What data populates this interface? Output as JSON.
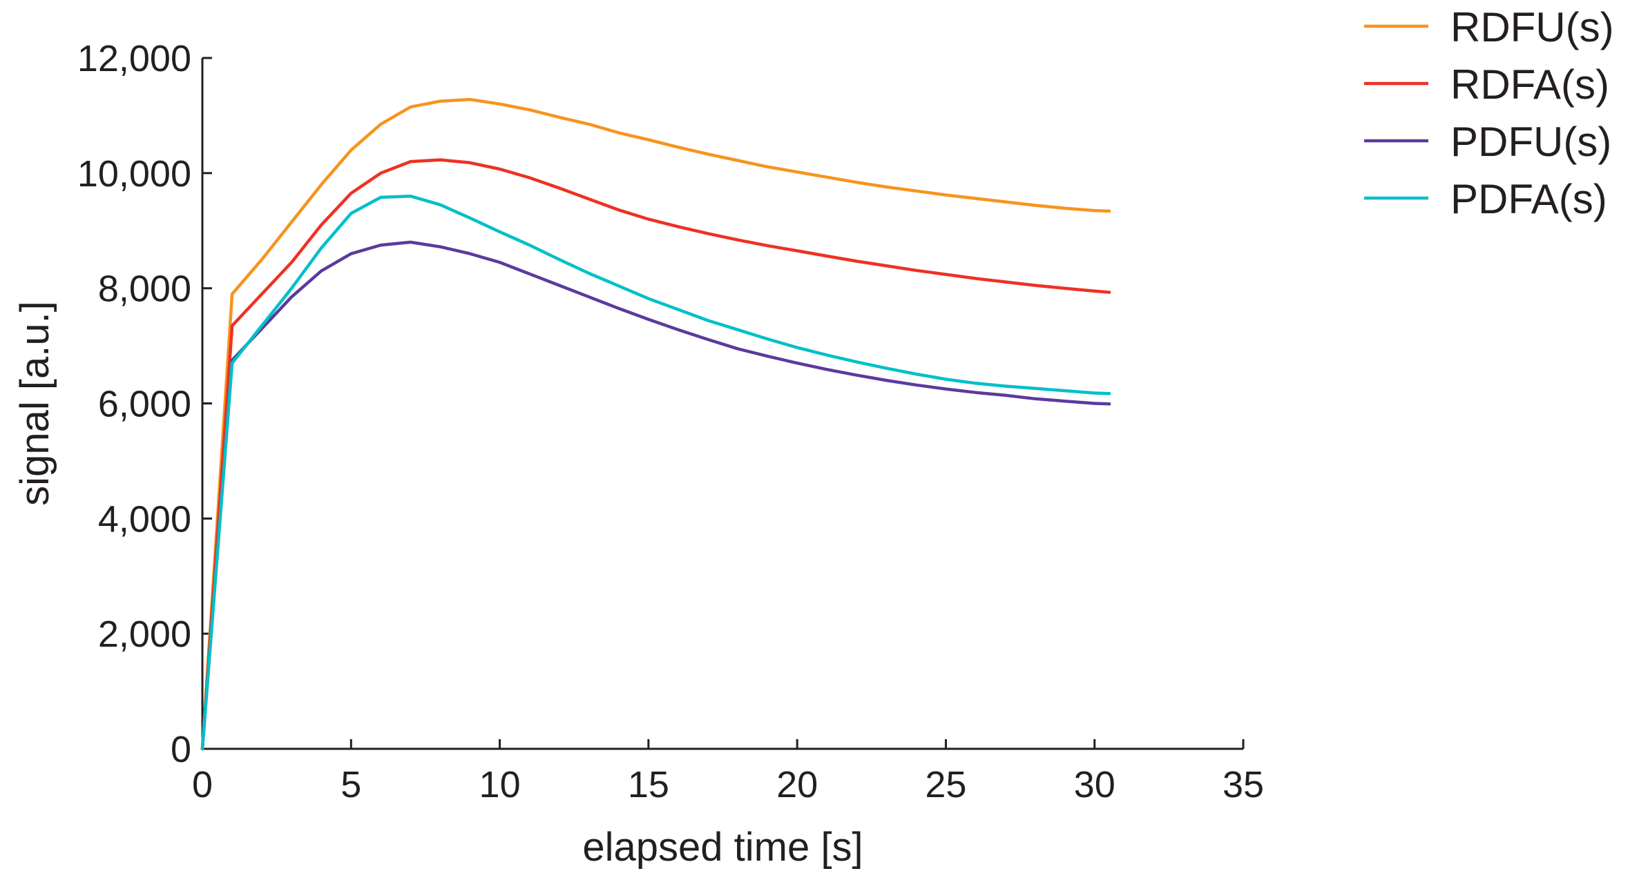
{
  "chart_data": {
    "type": "line",
    "title": "",
    "xlabel": "elapsed time [s]",
    "ylabel": "signal [a.u.]",
    "xlim": [
      0,
      35
    ],
    "ylim": [
      0,
      12000
    ],
    "xticks": [
      0,
      5,
      10,
      15,
      20,
      25,
      30,
      35
    ],
    "yticks": [
      0,
      2000,
      4000,
      6000,
      8000,
      10000,
      12000
    ],
    "xtick_labels": [
      "0",
      "5",
      "10",
      "15",
      "20",
      "25",
      "30",
      "35"
    ],
    "ytick_labels": [
      "0",
      "2,000",
      "4,000",
      "6,000",
      "8,000",
      "10,000",
      "12,000"
    ],
    "grid": false,
    "legend_position": "top-right, outside plot",
    "series": [
      {
        "name": "RDFU(s)",
        "color": "#f7941d",
        "x": [
          0,
          1,
          2,
          3,
          4,
          5,
          6,
          7,
          8,
          9,
          10,
          11,
          12,
          13,
          14,
          15,
          16,
          17,
          18,
          19,
          20,
          21,
          22,
          23,
          24,
          25,
          26,
          27,
          28,
          29,
          30,
          30.5
        ],
        "y": [
          0,
          7900,
          8500,
          9150,
          9800,
          10400,
          10850,
          11150,
          11250,
          11280,
          11200,
          11100,
          10970,
          10850,
          10700,
          10580,
          10450,
          10330,
          10220,
          10110,
          10020,
          9930,
          9840,
          9760,
          9690,
          9620,
          9560,
          9500,
          9440,
          9390,
          9350,
          9340
        ]
      },
      {
        "name": "RDFA(s)",
        "color": "#ee3124",
        "x": [
          0,
          1,
          2,
          3,
          4,
          5,
          6,
          7,
          8,
          9,
          10,
          11,
          12,
          13,
          14,
          15,
          16,
          17,
          18,
          19,
          20,
          21,
          22,
          23,
          24,
          25,
          26,
          27,
          28,
          29,
          30,
          30.5
        ],
        "y": [
          0,
          7350,
          7900,
          8450,
          9100,
          9650,
          10000,
          10200,
          10230,
          10180,
          10070,
          9920,
          9740,
          9550,
          9360,
          9200,
          9070,
          8950,
          8840,
          8740,
          8650,
          8560,
          8470,
          8390,
          8310,
          8240,
          8170,
          8110,
          8050,
          8000,
          7950,
          7930
        ]
      },
      {
        "name": "PDFU(s)",
        "color": "#5b3a9e",
        "x": [
          0,
          1,
          2,
          3,
          4,
          5,
          6,
          7,
          8,
          9,
          10,
          11,
          12,
          13,
          14,
          15,
          16,
          17,
          18,
          19,
          20,
          21,
          22,
          23,
          24,
          25,
          26,
          27,
          28,
          29,
          30,
          30.5
        ],
        "y": [
          0,
          6750,
          7300,
          7850,
          8300,
          8600,
          8750,
          8800,
          8720,
          8600,
          8450,
          8250,
          8050,
          7850,
          7650,
          7460,
          7280,
          7110,
          6950,
          6820,
          6700,
          6590,
          6490,
          6400,
          6320,
          6250,
          6190,
          6140,
          6080,
          6040,
          6000,
          5990
        ]
      },
      {
        "name": "PDFA(s)",
        "color": "#00c0c8",
        "x": [
          0,
          1,
          2,
          3,
          4,
          5,
          6,
          7,
          8,
          9,
          10,
          11,
          12,
          13,
          14,
          15,
          16,
          17,
          18,
          19,
          20,
          21,
          22,
          23,
          24,
          25,
          26,
          27,
          28,
          29,
          30,
          30.5
        ],
        "y": [
          0,
          6700,
          7350,
          8000,
          8700,
          9300,
          9580,
          9600,
          9450,
          9220,
          8980,
          8750,
          8500,
          8260,
          8040,
          7820,
          7630,
          7440,
          7280,
          7120,
          6970,
          6840,
          6720,
          6610,
          6510,
          6420,
          6350,
          6300,
          6260,
          6220,
          6180,
          6170
        ]
      }
    ]
  }
}
